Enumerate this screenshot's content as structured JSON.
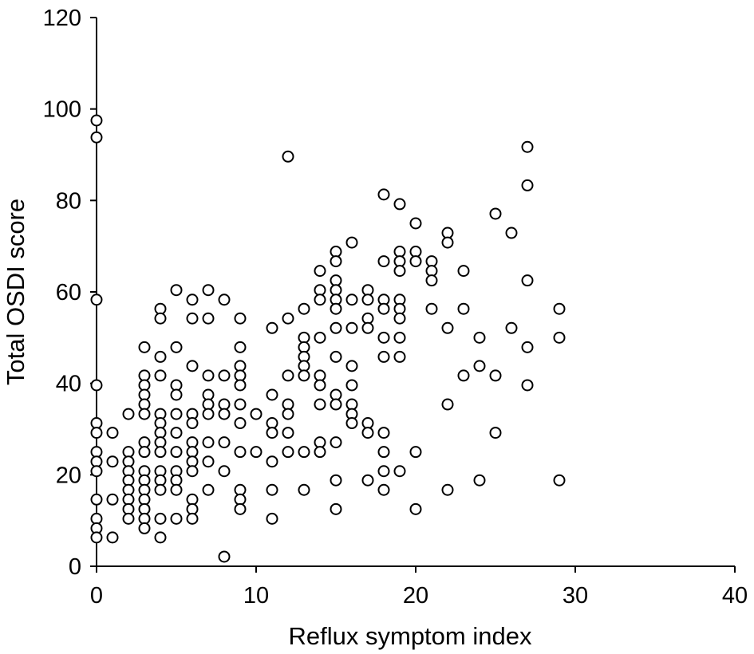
{
  "chart_data": {
    "type": "scatter",
    "title": "",
    "xlabel": "Reflux symptom index",
    "ylabel": "Total OSDI score",
    "xlim": [
      0,
      40
    ],
    "ylim": [
      0,
      120
    ],
    "xticks": [
      0,
      10,
      20,
      30,
      40
    ],
    "yticks": [
      0,
      20,
      40,
      60,
      80,
      100,
      120
    ],
    "grid": false,
    "legend": "none",
    "marker": "open-circle",
    "colors": {
      "marker_stroke": "#000000",
      "marker_fill": "#ffffff",
      "axis": "#000000"
    },
    "points": [
      [
        0,
        97.5
      ],
      [
        0,
        93.8
      ],
      [
        0,
        58.3
      ],
      [
        0,
        39.6
      ],
      [
        0,
        31.3
      ],
      [
        0,
        29.2
      ],
      [
        0,
        25
      ],
      [
        0,
        22.9
      ],
      [
        0,
        20.8
      ],
      [
        0,
        14.6
      ],
      [
        0,
        10.4
      ],
      [
        0,
        8.3
      ],
      [
        0,
        6.3
      ],
      [
        1,
        29.2
      ],
      [
        1,
        22.9
      ],
      [
        1,
        14.6
      ],
      [
        1,
        6.3
      ],
      [
        2,
        33.3
      ],
      [
        2,
        25
      ],
      [
        2,
        22.9
      ],
      [
        2,
        20.8
      ],
      [
        2,
        18.8
      ],
      [
        2,
        16.7
      ],
      [
        2,
        14.6
      ],
      [
        2,
        12.5
      ],
      [
        2,
        10.4
      ],
      [
        3,
        47.9
      ],
      [
        3,
        41.7
      ],
      [
        3,
        39.6
      ],
      [
        3,
        37.5
      ],
      [
        3,
        35.4
      ],
      [
        3,
        33.3
      ],
      [
        3,
        27.1
      ],
      [
        3,
        25
      ],
      [
        3,
        20.8
      ],
      [
        3,
        18.8
      ],
      [
        3,
        16.7
      ],
      [
        3,
        14.6
      ],
      [
        3,
        12.5
      ],
      [
        3,
        10.4
      ],
      [
        3,
        8.3
      ],
      [
        4,
        56.3
      ],
      [
        4,
        54.2
      ],
      [
        4,
        45.8
      ],
      [
        4,
        41.7
      ],
      [
        4,
        33.3
      ],
      [
        4,
        31.3
      ],
      [
        4,
        29.2
      ],
      [
        4,
        27.1
      ],
      [
        4,
        25
      ],
      [
        4,
        20.8
      ],
      [
        4,
        18.8
      ],
      [
        4,
        16.7
      ],
      [
        4,
        10.4
      ],
      [
        4,
        6.3
      ],
      [
        5,
        60.4
      ],
      [
        5,
        47.9
      ],
      [
        5,
        39.6
      ],
      [
        5,
        37.5
      ],
      [
        5,
        33.3
      ],
      [
        5,
        29.2
      ],
      [
        5,
        25
      ],
      [
        5,
        20.8
      ],
      [
        5,
        18.8
      ],
      [
        5,
        16.7
      ],
      [
        5,
        10.4
      ],
      [
        6,
        58.3
      ],
      [
        6,
        54.2
      ],
      [
        6,
        43.8
      ],
      [
        6,
        33.3
      ],
      [
        6,
        31.3
      ],
      [
        6,
        27.1
      ],
      [
        6,
        25
      ],
      [
        6,
        22.9
      ],
      [
        6,
        20.8
      ],
      [
        6,
        14.6
      ],
      [
        6,
        12.5
      ],
      [
        6,
        10.4
      ],
      [
        7,
        60.4
      ],
      [
        7,
        54.2
      ],
      [
        7,
        41.7
      ],
      [
        7,
        37.5
      ],
      [
        7,
        35.4
      ],
      [
        7,
        33.3
      ],
      [
        7,
        27.1
      ],
      [
        7,
        22.9
      ],
      [
        7,
        16.7
      ],
      [
        8,
        58.3
      ],
      [
        8,
        41.7
      ],
      [
        8,
        35.4
      ],
      [
        8,
        33.3
      ],
      [
        8,
        27.1
      ],
      [
        8,
        20.8
      ],
      [
        8,
        2.1
      ],
      [
        9,
        54.2
      ],
      [
        9,
        47.9
      ],
      [
        9,
        43.8
      ],
      [
        9,
        41.7
      ],
      [
        9,
        39.6
      ],
      [
        9,
        35.4
      ],
      [
        9,
        31.3
      ],
      [
        9,
        25
      ],
      [
        9,
        16.7
      ],
      [
        9,
        14.6
      ],
      [
        9,
        12.5
      ],
      [
        10,
        33.3
      ],
      [
        10,
        25
      ],
      [
        11,
        52.1
      ],
      [
        11,
        37.5
      ],
      [
        11,
        31.3
      ],
      [
        11,
        29.2
      ],
      [
        11,
        22.9
      ],
      [
        11,
        16.7
      ],
      [
        11,
        10.4
      ],
      [
        12,
        89.6
      ],
      [
        12,
        54.2
      ],
      [
        12,
        41.7
      ],
      [
        12,
        35.4
      ],
      [
        12,
        33.3
      ],
      [
        12,
        29.2
      ],
      [
        12,
        25
      ],
      [
        13,
        56.3
      ],
      [
        13,
        50
      ],
      [
        13,
        47.9
      ],
      [
        13,
        45.8
      ],
      [
        13,
        43.8
      ],
      [
        13,
        41.7
      ],
      [
        13,
        25
      ],
      [
        13,
        16.7
      ],
      [
        14,
        64.6
      ],
      [
        14,
        60.4
      ],
      [
        14,
        58.3
      ],
      [
        14,
        50
      ],
      [
        14,
        41.7
      ],
      [
        14,
        39.6
      ],
      [
        14,
        35.4
      ],
      [
        14,
        27.1
      ],
      [
        14,
        25
      ],
      [
        15,
        68.8
      ],
      [
        15,
        66.7
      ],
      [
        15,
        62.5
      ],
      [
        15,
        60.4
      ],
      [
        15,
        58.3
      ],
      [
        15,
        56.3
      ],
      [
        15,
        52.1
      ],
      [
        15,
        45.8
      ],
      [
        15,
        37.5
      ],
      [
        15,
        35.4
      ],
      [
        15,
        27.1
      ],
      [
        15,
        18.8
      ],
      [
        15,
        12.5
      ],
      [
        16,
        70.8
      ],
      [
        16,
        58.3
      ],
      [
        16,
        52.1
      ],
      [
        16,
        43.8
      ],
      [
        16,
        39.6
      ],
      [
        16,
        35.4
      ],
      [
        16,
        33.3
      ],
      [
        16,
        31.3
      ],
      [
        17,
        60.4
      ],
      [
        17,
        58.3
      ],
      [
        17,
        54.2
      ],
      [
        17,
        52.1
      ],
      [
        17,
        31.3
      ],
      [
        17,
        29.2
      ],
      [
        17,
        18.8
      ],
      [
        18,
        81.3
      ],
      [
        18,
        66.7
      ],
      [
        18,
        58.3
      ],
      [
        18,
        56.3
      ],
      [
        18,
        50
      ],
      [
        18,
        45.8
      ],
      [
        18,
        29.2
      ],
      [
        18,
        25
      ],
      [
        18,
        20.8
      ],
      [
        18,
        16.7
      ],
      [
        19,
        79.2
      ],
      [
        19,
        68.8
      ],
      [
        19,
        66.7
      ],
      [
        19,
        64.6
      ],
      [
        19,
        58.3
      ],
      [
        19,
        56.3
      ],
      [
        19,
        54.2
      ],
      [
        19,
        50
      ],
      [
        19,
        45.8
      ],
      [
        19,
        20.8
      ],
      [
        20,
        75
      ],
      [
        20,
        68.8
      ],
      [
        20,
        66.7
      ],
      [
        20,
        25
      ],
      [
        20,
        12.5
      ],
      [
        21,
        66.7
      ],
      [
        21,
        64.6
      ],
      [
        21,
        62.5
      ],
      [
        21,
        56.3
      ],
      [
        22,
        72.9
      ],
      [
        22,
        70.8
      ],
      [
        22,
        52.1
      ],
      [
        22,
        35.4
      ],
      [
        22,
        16.7
      ],
      [
        23,
        64.6
      ],
      [
        23,
        56.3
      ],
      [
        23,
        41.7
      ],
      [
        24,
        50
      ],
      [
        24,
        43.8
      ],
      [
        24,
        18.8
      ],
      [
        25,
        77.1
      ],
      [
        25,
        41.7
      ],
      [
        25,
        29.2
      ],
      [
        26,
        72.9
      ],
      [
        26,
        52.1
      ],
      [
        27,
        91.7
      ],
      [
        27,
        83.3
      ],
      [
        27,
        62.5
      ],
      [
        27,
        47.9
      ],
      [
        27,
        39.6
      ],
      [
        29,
        56.3
      ],
      [
        29,
        50
      ],
      [
        29,
        18.8
      ]
    ]
  }
}
